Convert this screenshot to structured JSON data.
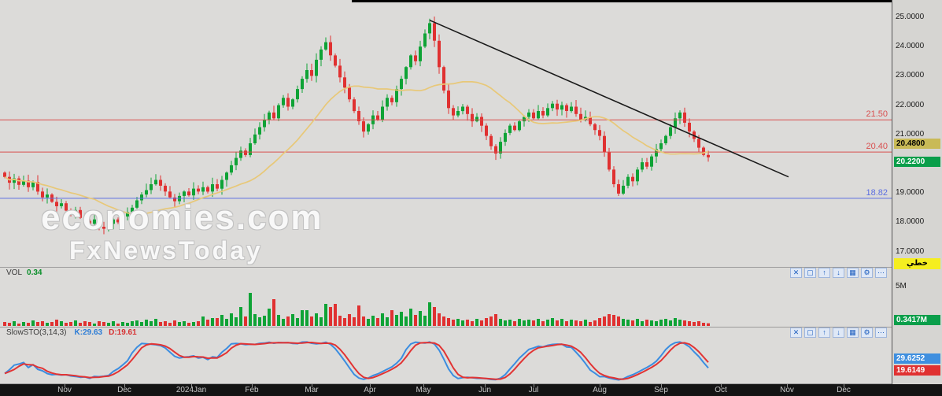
{
  "main_chart": {
    "watermark": {
      "line1": "economies.com",
      "line2": "FxNewsToday"
    },
    "price_axis_ticks": [
      "25.0000",
      "24.0000",
      "23.0000",
      "22.0000",
      "21.0000",
      "20.0000",
      "19.0000",
      "18.0000",
      "17.0000"
    ],
    "levels": [
      {
        "label": "21.50",
        "price": 21.5,
        "color": "#d94f4f"
      },
      {
        "label": "20.40",
        "price": 20.4,
        "color": "#d94f4f"
      },
      {
        "label": "18.82",
        "price": 18.82,
        "color": "#5b6ee1"
      }
    ],
    "price_tags": [
      {
        "text": "20.4800",
        "price": 20.48,
        "bg": "#c9ba57",
        "fg": "#000000"
      },
      {
        "text": "20.2200",
        "price": 20.22,
        "bg": "#0a9e4a",
        "fg": "#ffffff"
      }
    ],
    "style_tag": {
      "text": "خطي",
      "bg": "#f5ee20",
      "fg": "#000000"
    },
    "up_color": "#0fa336",
    "down_color": "#e03131",
    "ma_color": "#e8c878",
    "trendline_color": "#1a1a1a"
  },
  "volume_panel": {
    "label": "VOL",
    "value": "0.34",
    "axis_tick": "5M",
    "value_tag": {
      "text": "0.3417M",
      "bg": "#0a9e4a",
      "fg": "#ffffff"
    }
  },
  "sto_panel": {
    "label": "SlowSTO(3,14,3)",
    "k_text": "K:29.63",
    "d_text": "D:19.61",
    "k_color": "#3b8de0",
    "d_color": "#e23333",
    "k_tag": {
      "text": "29.6252",
      "bg": "#3f8fdf",
      "fg": "#ffffff"
    },
    "d_tag": {
      "text": "19.6149",
      "bg": "#e03131",
      "fg": "#ffffff"
    }
  },
  "panel_toolbar_icons": [
    {
      "name": "close-icon",
      "glyph": "✕"
    },
    {
      "name": "window-icon",
      "glyph": "▢"
    },
    {
      "name": "move-up-icon",
      "glyph": "↑"
    },
    {
      "name": "move-down-icon",
      "glyph": "↓"
    },
    {
      "name": "grid-icon",
      "glyph": "▦"
    },
    {
      "name": "settings-icon",
      "glyph": "⚙"
    },
    {
      "name": "more-options-icon",
      "glyph": "⋯"
    }
  ],
  "chart_data": {
    "type": "candlestick",
    "title": "",
    "x_axis": {
      "months": [
        "Nov",
        "Dec",
        "2024Jan",
        "Feb",
        "Mar",
        "Apr",
        "May",
        "Jun",
        "Jul",
        "Aug",
        "Sep",
        "Oct",
        "Nov",
        "Dec"
      ]
    },
    "y_axis": {
      "ticks": [
        25,
        24,
        23,
        22,
        21,
        20,
        19,
        18,
        17
      ],
      "format": "0.0000"
    },
    "price_range_shown": [
      17.0,
      25.0
    ],
    "closes": [
      19.55,
      19.35,
      19.5,
      19.28,
      19.42,
      19.2,
      19.38,
      19.05,
      18.85,
      18.95,
      18.7,
      18.55,
      18.65,
      18.4,
      18.3,
      18.42,
      18.15,
      18.05,
      17.95,
      18.1,
      17.85,
      17.78,
      17.95,
      18.1,
      18.0,
      18.2,
      18.35,
      18.5,
      18.75,
      18.95,
      19.1,
      19.3,
      19.45,
      19.25,
      19.05,
      18.85,
      18.72,
      18.9,
      19.05,
      18.92,
      19.15,
      19.05,
      19.2,
      19.05,
      19.3,
      19.15,
      19.45,
      19.7,
      19.95,
      20.2,
      20.45,
      20.3,
      20.7,
      21.0,
      21.25,
      21.5,
      21.75,
      21.55,
      22.0,
      22.25,
      21.95,
      22.2,
      22.55,
      22.9,
      23.2,
      23.0,
      23.55,
      23.9,
      24.15,
      23.7,
      23.35,
      22.95,
      22.6,
      22.2,
      21.8,
      21.45,
      21.1,
      21.35,
      21.65,
      21.5,
      21.95,
      22.25,
      22.1,
      22.55,
      22.9,
      23.3,
      23.7,
      23.5,
      24.0,
      24.45,
      24.8,
      24.2,
      23.3,
      22.5,
      21.9,
      21.65,
      21.8,
      21.95,
      21.7,
      21.45,
      21.6,
      21.3,
      20.95,
      20.6,
      20.35,
      20.75,
      21.05,
      21.3,
      21.15,
      21.45,
      21.6,
      21.75,
      21.55,
      21.8,
      21.65,
      21.9,
      22.05,
      21.85,
      22.0,
      21.8,
      21.95,
      21.7,
      21.5,
      21.6,
      21.35,
      21.15,
      20.95,
      20.4,
      19.8,
      19.3,
      18.98,
      19.25,
      19.55,
      19.4,
      19.8,
      20.05,
      19.9,
      20.25,
      20.5,
      20.7,
      20.95,
      21.25,
      21.55,
      21.75,
      21.4,
      21.1,
      20.85,
      20.55,
      20.3,
      20.22
    ],
    "volumes_m": [
      0.5,
      0.4,
      0.6,
      0.3,
      0.5,
      0.4,
      0.7,
      0.5,
      0.6,
      0.4,
      0.5,
      0.8,
      0.6,
      0.4,
      0.5,
      0.7,
      0.4,
      0.6,
      0.5,
      0.3,
      0.6,
      0.5,
      0.4,
      0.6,
      0.3,
      0.5,
      0.4,
      0.6,
      0.7,
      0.5,
      0.8,
      0.6,
      0.9,
      0.5,
      0.6,
      0.4,
      0.7,
      0.5,
      0.6,
      0.4,
      0.5,
      0.6,
      1.2,
      0.8,
      1.0,
      1.0,
      1.4,
      0.9,
      1.6,
      1.1,
      2.4,
      1.2,
      4.2,
      1.5,
      1.1,
      1.3,
      2.2,
      3.4,
      1.4,
      0.9,
      1.2,
      1.5,
      1.0,
      2.0,
      2.0,
      1.2,
      1.6,
      1.1,
      2.8,
      2.4,
      2.8,
      1.3,
      1.0,
      1.5,
      1.1,
      2.6,
      1.2,
      0.9,
      1.3,
      1.0,
      1.6,
      1.1,
      2.0,
      1.4,
      1.8,
      1.2,
      2.2,
      1.4,
      1.9,
      1.3,
      3.0,
      2.4,
      1.6,
      1.2,
      1.0,
      0.8,
      0.9,
      0.7,
      0.8,
      0.6,
      0.9,
      0.7,
      1.0,
      1.2,
      1.5,
      0.9,
      0.7,
      0.8,
      0.6,
      0.9,
      0.7,
      0.8,
      0.7,
      0.9,
      0.6,
      0.8,
      1.0,
      0.7,
      0.9,
      0.6,
      0.8,
      0.7,
      0.6,
      0.8,
      0.5,
      0.7,
      1.0,
      1.2,
      1.5,
      1.4,
      1.2,
      0.9,
      0.8,
      0.7,
      0.9,
      0.6,
      0.8,
      0.7,
      0.6,
      0.8,
      0.9,
      0.7,
      1.0,
      0.8,
      0.7,
      0.6,
      0.5,
      0.6,
      0.4,
      0.34
    ],
    "indicators": {
      "ma": {
        "period": 20,
        "last_value": 20.48
      },
      "slow_stochastic": {
        "params": "3,14,3",
        "k_last": 29.6252,
        "d_last": 19.6149
      },
      "volume_last_m": 0.3417
    },
    "levels": [
      21.5,
      20.4,
      18.82
    ],
    "last_price": 20.22,
    "trendline": {
      "start": {
        "index": 90,
        "price": 24.9
      },
      "end": {
        "index": 166,
        "price": 19.55
      }
    }
  }
}
